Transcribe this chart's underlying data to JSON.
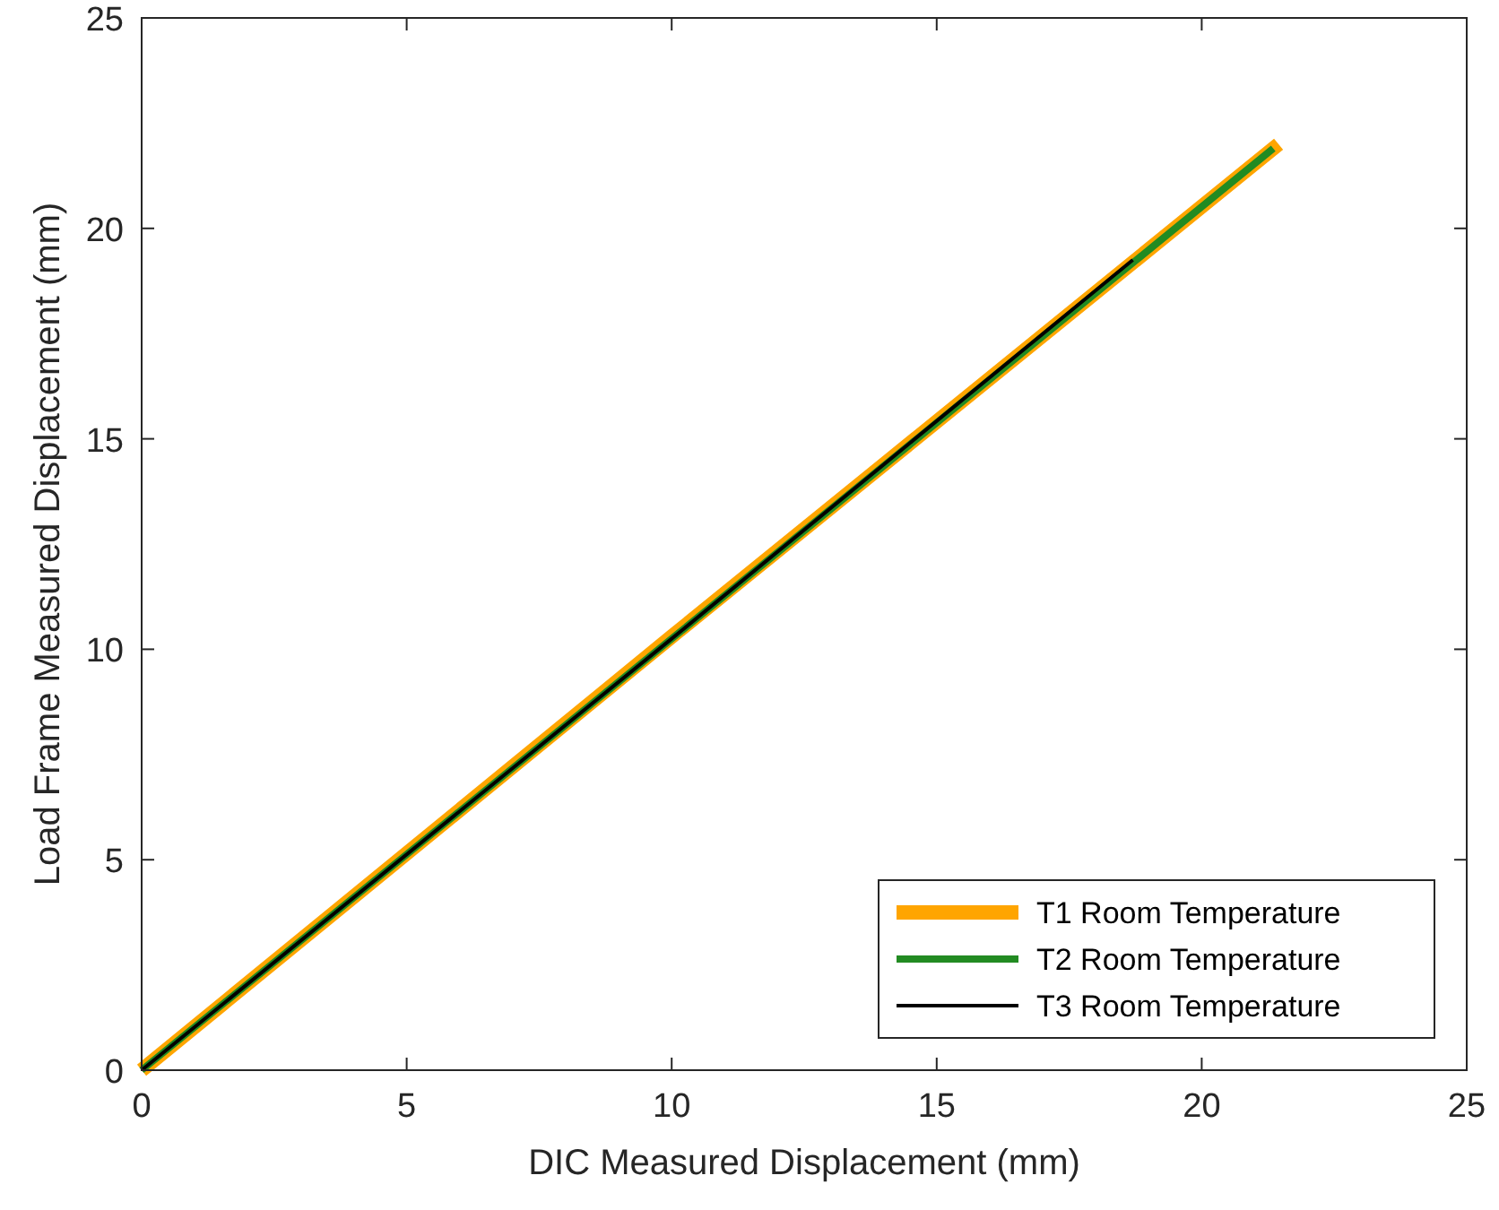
{
  "chart_data": {
    "type": "line",
    "xlabel": "DIC Measured Displacement (mm)",
    "ylabel": "Load Frame Measured Displacement (mm)",
    "xlim": [
      0,
      25
    ],
    "ylim": [
      0,
      25
    ],
    "xticks": [
      0,
      5,
      10,
      15,
      20,
      25
    ],
    "yticks": [
      0,
      5,
      10,
      15,
      20,
      25
    ],
    "grid": false,
    "legend": "bottom right",
    "line_style": "solid",
    "marker": "none",
    "series": [
      {
        "name": "T1 Room Temperature",
        "color": "#ffa500",
        "x": [
          0,
          10,
          21.45
        ],
        "values": [
          0,
          10.3,
          22.0
        ]
      },
      {
        "name": "T2 Room Temperature",
        "color": "#228b22",
        "x": [
          0,
          10,
          21.35
        ],
        "values": [
          0,
          10.25,
          21.9
        ]
      },
      {
        "name": "T3 Room Temperature",
        "color": "#000000",
        "x": [
          0,
          10,
          18.7
        ],
        "values": [
          0,
          10.25,
          19.25
        ]
      }
    ]
  }
}
